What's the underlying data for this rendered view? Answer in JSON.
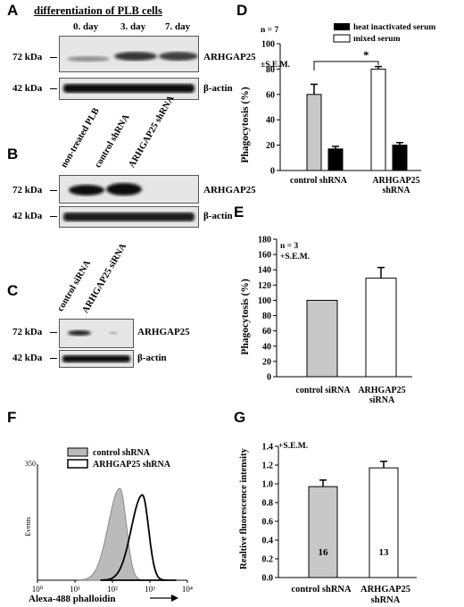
{
  "panel_letters": [
    "A",
    "B",
    "C",
    "D",
    "E",
    "F",
    "G"
  ],
  "blot_a": {
    "title": "differentiation of PLB cells",
    "lanes": [
      "0. day",
      "3. day",
      "7. day"
    ],
    "rows": [
      {
        "mw": "72 kDa",
        "protein": "ARHGAP25"
      },
      {
        "mw": "42 kDa",
        "protein": "β-actin"
      }
    ]
  },
  "blot_b": {
    "lanes": [
      "non-treated PLB",
      "control shRNA",
      "ARHGAP25 shRNA"
    ],
    "rows": [
      {
        "mw": "72 kDa",
        "protein": "ARHGAP25"
      },
      {
        "mw": "42 kDa",
        "protein": "β-actin"
      }
    ]
  },
  "blot_c": {
    "lanes": [
      "control siRNA",
      "ARHGAP25 siRNA"
    ],
    "rows": [
      {
        "mw": "72 kDa",
        "protein": "ARHGAP25"
      },
      {
        "mw": "42 kDa",
        "protein": "β-actin"
      }
    ]
  },
  "chart_data": [
    {
      "panel": "D",
      "type": "bar",
      "ylabel": "Phagocytosis (%)",
      "ylim": [
        0,
        100
      ],
      "yticks": [
        0,
        20,
        40,
        60,
        80,
        100
      ],
      "categories": [
        "control shRNA",
        "ARHGAP25 shRNA"
      ],
      "series": [
        {
          "name": "heat inactivated serum",
          "values": [
            17,
            20
          ],
          "errors": [
            2,
            2
          ]
        },
        {
          "name": "mixed serum",
          "values": [
            60,
            80
          ],
          "errors": [
            8,
            2
          ]
        }
      ],
      "annotation": "n = 7\n±S.E.M.",
      "significance": "*",
      "legend": "top-right"
    },
    {
      "panel": "E",
      "type": "bar",
      "ylabel": "Phagocytosis (%)",
      "ylim": [
        0,
        180
      ],
      "yticks": [
        0,
        20,
        40,
        60,
        80,
        100,
        120,
        140,
        160,
        180
      ],
      "categories": [
        "control siRNA",
        "ARHGAP25 siRNA"
      ],
      "values": [
        100,
        129
      ],
      "errors": [
        0,
        14
      ],
      "annotation": "n = 3\n+S.E.M."
    },
    {
      "panel": "F",
      "type": "area",
      "ylabel": "Events",
      "xlabel": "Alexa-488 phalloidin",
      "xscale": "log",
      "xticks": [
        "10⁰",
        "10¹",
        "10²",
        "10³",
        "10⁴"
      ],
      "y_top_tick": "350",
      "series": [
        {
          "name": "control shRNA",
          "peak_log10": 2.2,
          "fill": "#bbbbbb"
        },
        {
          "name": "ARHGAP25 shRNA",
          "peak_log10": 2.8,
          "fill": "none"
        }
      ],
      "legend": "top-left"
    },
    {
      "panel": "G",
      "type": "bar",
      "ylabel": "Realtive fluorescence intensity",
      "ylim": [
        0,
        1.4
      ],
      "yticks": [
        "0.0",
        "0.2",
        "0.4",
        "0.6",
        "0.8",
        "1.0",
        "1.2",
        "1.4"
      ],
      "categories": [
        "control shRNA",
        "ARHGAP25 shRNA"
      ],
      "values": [
        0.97,
        1.17
      ],
      "errors": [
        0.07,
        0.07
      ],
      "bar_labels": [
        "16",
        "13"
      ],
      "annotation": "+S.E.M."
    }
  ]
}
